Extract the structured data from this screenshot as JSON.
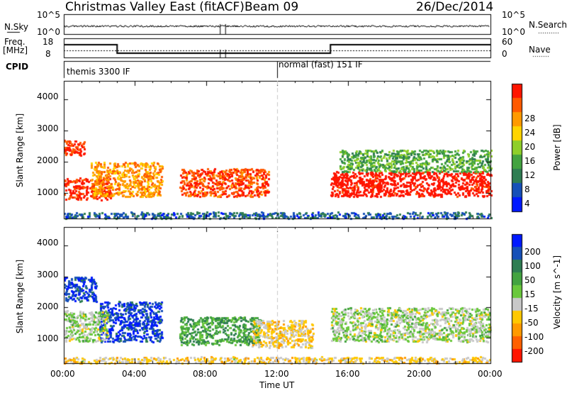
{
  "header": {
    "title": "Christmas Valley East (fitACF)",
    "beam": "Beam 09",
    "date": "26/Dec/2014"
  },
  "top_panel": {
    "left_label": "N.Sky",
    "left_ticks": [
      "10^5",
      "10^0"
    ],
    "right_label": "N.Search",
    "right_ticks": [
      "10^5",
      "10^0"
    ]
  },
  "freq_panel": {
    "left_label_1": "Freq.",
    "left_label_2": "[MHz]",
    "left_ticks": [
      "18",
      "8"
    ],
    "right_label": "Nave",
    "right_ticks": [
      "60",
      "0"
    ]
  },
  "cpid": {
    "label": "CPID",
    "mode_1": "themis 3300 IF",
    "mode_2": "normal (fast) 151 IF"
  },
  "axes": {
    "x_ticks": [
      "00:00",
      "04:00",
      "08:00",
      "12:00",
      "16:00",
      "20:00",
      "00:00"
    ],
    "x_label": "Time UT",
    "y_label": "Slant Range [km]",
    "y_ticks": [
      "4000",
      "3000",
      "2000",
      "1000"
    ]
  },
  "colors": {
    "power": [
      "#0019ff",
      "#1650b8",
      "#2e7d52",
      "#43a340",
      "#8fcf2a",
      "#ffd400",
      "#ff9a00",
      "#ff5a00",
      "#ff1500"
    ],
    "velocity": [
      "#0019ff",
      "#1650b8",
      "#2e7d52",
      "#43a340",
      "#6ac83c",
      "#c8c8c8",
      "#ffc800",
      "#ff9a00",
      "#ff6000",
      "#ff1500"
    ],
    "signal_line": "#000000",
    "dashed_line": "#c8c8c8"
  },
  "chart_data": [
    {
      "type": "heatmap",
      "title": "",
      "xlabel": "",
      "ylabel": "Slant Range [km]",
      "xlim": [
        0,
        24
      ],
      "ylim": [
        180,
        4600
      ],
      "colorbar": {
        "label": "Power [dB]",
        "ticks": [
          "28",
          "24",
          "20",
          "16",
          "12",
          "8",
          "4"
        ],
        "range": [
          0,
          30
        ]
      },
      "scatter_regions": [
        {
          "x": [
            0.0,
            2.6
          ],
          "y": [
            800,
            1500
          ],
          "value": 28
        },
        {
          "x": [
            0.0,
            1.2
          ],
          "y": [
            2200,
            2700
          ],
          "value": 28
        },
        {
          "x": [
            1.5,
            5.5
          ],
          "y": [
            900,
            2000
          ],
          "value": 22
        },
        {
          "x": [
            6.5,
            11.5
          ],
          "y": [
            900,
            1800
          ],
          "value": 26
        },
        {
          "x": [
            15.0,
            24.0
          ],
          "y": [
            900,
            1700
          ],
          "value": 30
        },
        {
          "x": [
            15.5,
            24.0
          ],
          "y": [
            1700,
            2400
          ],
          "value": 12
        },
        {
          "x": [
            0.0,
            24.0
          ],
          "y": [
            200,
            400
          ],
          "value": 6
        }
      ]
    },
    {
      "type": "heatmap",
      "title": "",
      "xlabel": "Time UT",
      "ylabel": "Slant Range [km]",
      "xlim": [
        0,
        24
      ],
      "ylim": [
        180,
        4600
      ],
      "colorbar": {
        "label": "Velocity [m s^-1]",
        "ticks": [
          "200",
          "100",
          "50",
          "15",
          "-15",
          "-50",
          "-100",
          "-200"
        ],
        "range": [
          -250,
          250
        ]
      },
      "scatter_regions": [
        {
          "x": [
            0.0,
            1.8
          ],
          "y": [
            2200,
            3000
          ],
          "value": 200
        },
        {
          "x": [
            2.0,
            5.5
          ],
          "y": [
            900,
            2200
          ],
          "value": 200
        },
        {
          "x": [
            6.5,
            11.0
          ],
          "y": [
            800,
            1700
          ],
          "value": 80
        },
        {
          "x": [
            10.5,
            14.0
          ],
          "y": [
            700,
            1600
          ],
          "value": -60
        },
        {
          "x": [
            0.0,
            2.5
          ],
          "y": [
            900,
            1900
          ],
          "value": 0
        },
        {
          "x": [
            15.0,
            24.0
          ],
          "y": [
            900,
            2000
          ],
          "value": 0
        },
        {
          "x": [
            0.0,
            24.0
          ],
          "y": [
            200,
            400
          ],
          "value": -60
        }
      ]
    }
  ]
}
